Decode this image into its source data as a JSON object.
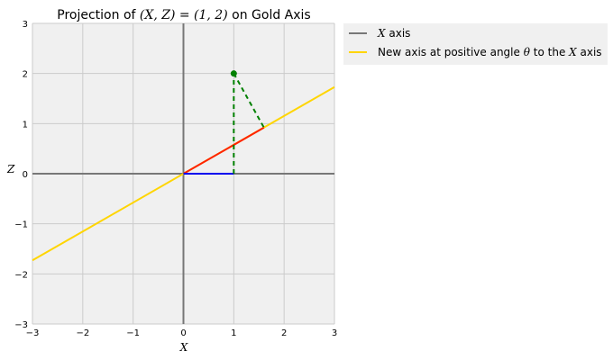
{
  "chart_data": {
    "type": "line",
    "title_prefix": "Projection of ",
    "title_math": "(X, Z) = (1, 2)",
    "title_suffix": " on Gold Axis",
    "xlabel": "X",
    "ylabel": "Z",
    "xlim": [
      -3,
      3
    ],
    "ylim": [
      -3,
      3
    ],
    "xticks": [
      -3,
      -2,
      -1,
      0,
      1,
      2,
      3
    ],
    "yticks": [
      -3,
      -2,
      -1,
      0,
      1,
      2,
      3
    ],
    "xtick_labels": [
      "−3",
      "−2",
      "−1",
      "0",
      "1",
      "2",
      "3"
    ],
    "ytick_labels": [
      "−3",
      "−2",
      "−1",
      "0",
      "1",
      "2",
      "3"
    ],
    "grid": true,
    "legend_position": "outside-top-right",
    "colors": {
      "background": "#f0f0f0",
      "grid": "#cbcbcb",
      "axis_line": "#777777",
      "gold": "#ffd500",
      "red": "#ff2200",
      "blue": "#0000ee",
      "green": "#008000"
    },
    "point": {
      "x": 1,
      "y": 2
    },
    "gold_axis": {
      "x": [
        -3,
        3
      ],
      "y": [
        -1.73,
        1.73
      ]
    },
    "vertical_axis": {
      "x": [
        0,
        0
      ],
      "y": [
        -3,
        3
      ]
    },
    "x_axis_line": {
      "x": [
        -3,
        3
      ],
      "y": [
        0,
        0
      ]
    },
    "blue_segment": {
      "x": [
        0,
        1
      ],
      "y": [
        0,
        0
      ]
    },
    "red_segment": {
      "x": [
        0,
        1.6
      ],
      "y": [
        0,
        0.92
      ]
    },
    "green_vertical": {
      "x": [
        1,
        1
      ],
      "y": [
        0,
        2
      ]
    },
    "green_to_axis": {
      "x": [
        1,
        1.6
      ],
      "y": [
        2,
        0.92
      ]
    },
    "legend": [
      {
        "math": "X",
        "suffix": " axis",
        "color": "#777777"
      },
      {
        "prefix": "New axis at positive angle ",
        "math": "θ",
        "middle": " to the ",
        "math2": "X",
        "suffix": " axis",
        "color": "#ffd500"
      }
    ]
  }
}
